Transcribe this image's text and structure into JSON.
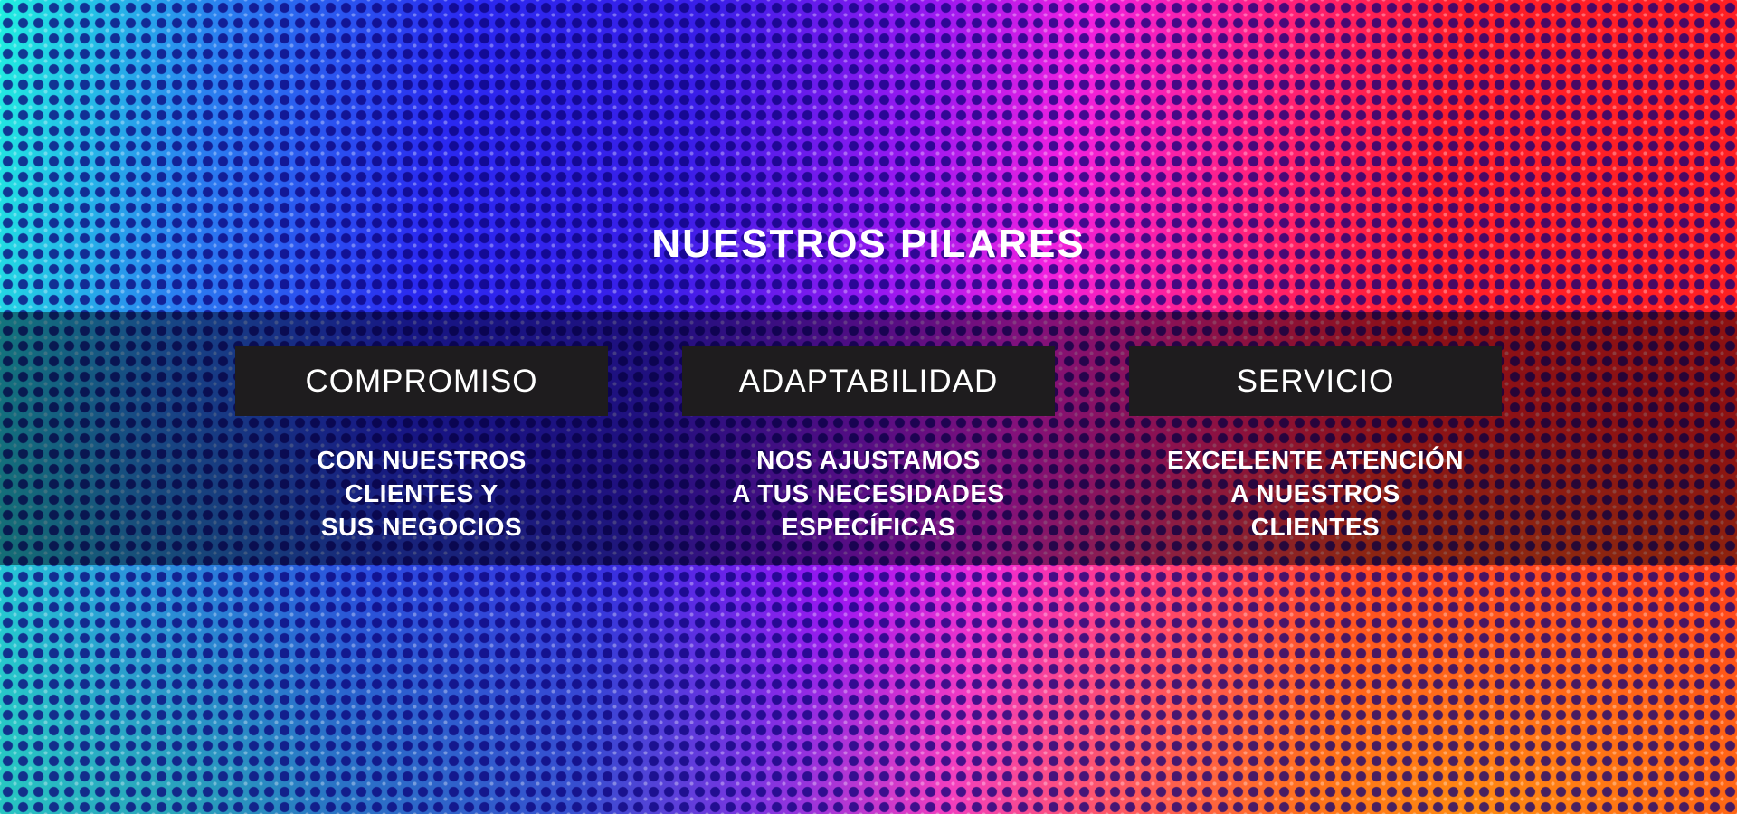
{
  "title": "NUESTROS PILARES",
  "colors": {
    "band": "#000000",
    "label_box": "#1e1c1e",
    "text": "#ffffff"
  },
  "pillars": [
    {
      "label": "COMPROMISO",
      "lines": [
        "CON NUESTROS",
        "CLIENTES Y",
        "SUS NEGOCIOS"
      ]
    },
    {
      "label": "ADAPTABILIDAD",
      "lines": [
        "NOS AJUSTAMOS",
        "A TUS NECESIDADES",
        "ESPECÍFICAS"
      ]
    },
    {
      "label": "SERVICIO",
      "lines": [
        "EXCELENTE ATENCIÓN",
        "A NUESTROS",
        "CLIENTES"
      ]
    }
  ]
}
